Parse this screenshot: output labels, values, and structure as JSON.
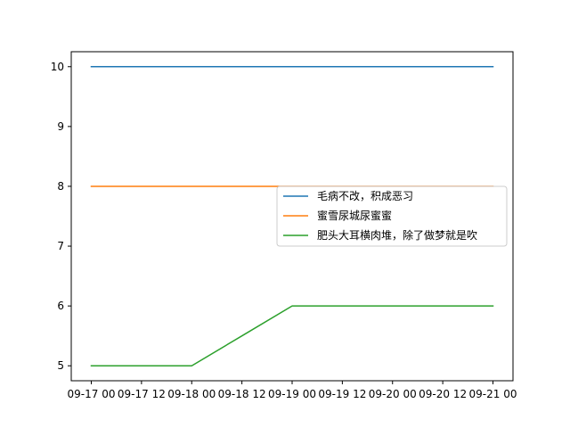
{
  "chart_data": {
    "type": "line",
    "title": "",
    "xlabel": "",
    "ylabel": "",
    "x": [
      "09-17 00",
      "09-17 12",
      "09-18 00",
      "09-18 12",
      "09-19 00",
      "09-19 12",
      "09-20 00",
      "09-20 12",
      "09-21 00"
    ],
    "x_tick_labels": [
      "09-17 00",
      "09-17 12",
      "09-18 00",
      "09-18 12",
      "09-19 00",
      "09-19 12",
      "09-20 00",
      "09-20 12",
      "09-21 00"
    ],
    "y_ticks": [
      5,
      6,
      7,
      8,
      9,
      10
    ],
    "ylim": [
      4.75,
      10.25
    ],
    "grid": false,
    "legend_position": "center-right",
    "series": [
      {
        "name": "毛病不改，积成恶习",
        "color": "#1f77b4",
        "values": [
          10,
          10,
          10,
          10,
          10,
          10,
          10,
          10,
          10
        ]
      },
      {
        "name": "蜜雪尿城尿蜜蜜",
        "color": "#ff7f0e",
        "values": [
          8,
          8,
          8,
          8,
          8,
          8,
          8,
          8,
          8
        ]
      },
      {
        "name": "肥头大耳横肉堆，除了做梦就是吹",
        "color": "#2ca02c",
        "values": [
          5,
          5,
          5,
          5.5,
          6,
          6,
          6,
          6,
          6
        ]
      }
    ]
  }
}
